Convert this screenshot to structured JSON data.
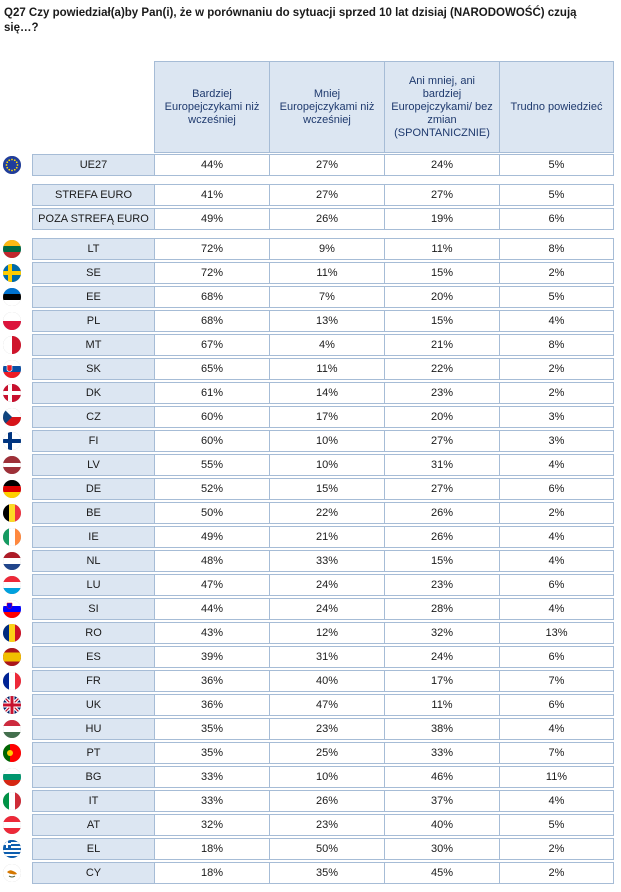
{
  "title": "Q27 Czy powiedział(a)by Pan(i), że w porównaniu do sytuacji sprzed 10 lat dzisiaj (NARODOWOŚĆ) czują się…?",
  "chart_data": {
    "type": "table",
    "columns": [
      "Bardziej Europejczykami niż wcześniej",
      "Mniej Europejczykami niż wcześniej",
      "Ani mniej, ani bardziej Europejczykami/ bez zmian (SPONTANICZNIE)",
      "Trudno powiedzieć"
    ],
    "rows": [
      {
        "label": "UE27",
        "flag": "eu",
        "values": [
          "44%",
          "27%",
          "24%",
          "5%"
        ]
      },
      {
        "label": "STREFA EURO",
        "flag": "",
        "values": [
          "41%",
          "27%",
          "27%",
          "5%"
        ]
      },
      {
        "label": "POZA STREFĄ EURO",
        "flag": "",
        "values": [
          "49%",
          "26%",
          "19%",
          "6%"
        ]
      },
      {
        "label": "LT",
        "flag": "lt",
        "values": [
          "72%",
          "9%",
          "11%",
          "8%"
        ]
      },
      {
        "label": "SE",
        "flag": "se",
        "values": [
          "72%",
          "11%",
          "15%",
          "2%"
        ]
      },
      {
        "label": "EE",
        "flag": "ee",
        "values": [
          "68%",
          "7%",
          "20%",
          "5%"
        ]
      },
      {
        "label": "PL",
        "flag": "pl",
        "values": [
          "68%",
          "13%",
          "15%",
          "4%"
        ]
      },
      {
        "label": "MT",
        "flag": "mt",
        "values": [
          "67%",
          "4%",
          "21%",
          "8%"
        ]
      },
      {
        "label": "SK",
        "flag": "sk",
        "values": [
          "65%",
          "11%",
          "22%",
          "2%"
        ]
      },
      {
        "label": "DK",
        "flag": "dk",
        "values": [
          "61%",
          "14%",
          "23%",
          "2%"
        ]
      },
      {
        "label": "CZ",
        "flag": "cz",
        "values": [
          "60%",
          "17%",
          "20%",
          "3%"
        ]
      },
      {
        "label": "FI",
        "flag": "fi",
        "values": [
          "60%",
          "10%",
          "27%",
          "3%"
        ]
      },
      {
        "label": "LV",
        "flag": "lv",
        "values": [
          "55%",
          "10%",
          "31%",
          "4%"
        ]
      },
      {
        "label": "DE",
        "flag": "de",
        "values": [
          "52%",
          "15%",
          "27%",
          "6%"
        ]
      },
      {
        "label": "BE",
        "flag": "be",
        "values": [
          "50%",
          "22%",
          "26%",
          "2%"
        ]
      },
      {
        "label": "IE",
        "flag": "ie",
        "values": [
          "49%",
          "21%",
          "26%",
          "4%"
        ]
      },
      {
        "label": "NL",
        "flag": "nl",
        "values": [
          "48%",
          "33%",
          "15%",
          "4%"
        ]
      },
      {
        "label": "LU",
        "flag": "lu",
        "values": [
          "47%",
          "24%",
          "23%",
          "6%"
        ]
      },
      {
        "label": "SI",
        "flag": "si",
        "values": [
          "44%",
          "24%",
          "28%",
          "4%"
        ]
      },
      {
        "label": "RO",
        "flag": "ro",
        "values": [
          "43%",
          "12%",
          "32%",
          "13%"
        ]
      },
      {
        "label": "ES",
        "flag": "es",
        "values": [
          "39%",
          "31%",
          "24%",
          "6%"
        ]
      },
      {
        "label": "FR",
        "flag": "fr",
        "values": [
          "36%",
          "40%",
          "17%",
          "7%"
        ]
      },
      {
        "label": "UK",
        "flag": "uk",
        "values": [
          "36%",
          "47%",
          "11%",
          "6%"
        ]
      },
      {
        "label": "HU",
        "flag": "hu",
        "values": [
          "35%",
          "23%",
          "38%",
          "4%"
        ]
      },
      {
        "label": "PT",
        "flag": "pt",
        "values": [
          "35%",
          "25%",
          "33%",
          "7%"
        ]
      },
      {
        "label": "BG",
        "flag": "bg",
        "values": [
          "33%",
          "10%",
          "46%",
          "11%"
        ]
      },
      {
        "label": "IT",
        "flag": "it",
        "values": [
          "33%",
          "26%",
          "37%",
          "4%"
        ]
      },
      {
        "label": "AT",
        "flag": "at",
        "values": [
          "32%",
          "23%",
          "40%",
          "5%"
        ]
      },
      {
        "label": "EL",
        "flag": "el",
        "values": [
          "18%",
          "50%",
          "30%",
          "2%"
        ]
      },
      {
        "label": "CY",
        "flag": "cy",
        "values": [
          "18%",
          "35%",
          "45%",
          "2%"
        ]
      }
    ]
  },
  "colors": {
    "header_bg": "#dce6f2",
    "border": "#a6bcd6",
    "header_text": "#1f3a6e"
  }
}
